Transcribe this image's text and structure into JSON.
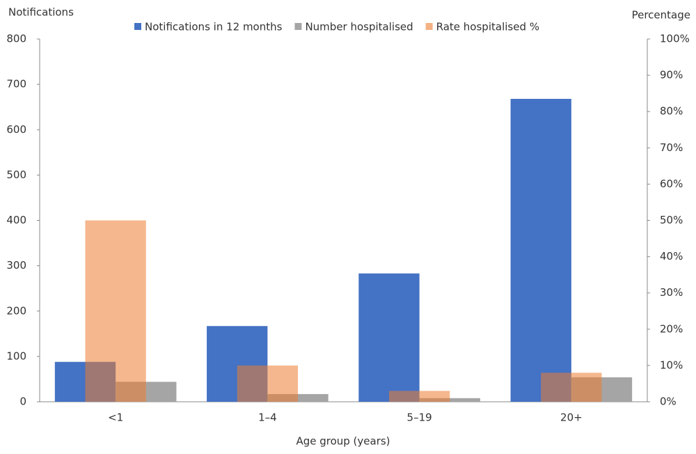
{
  "chart_data": {
    "type": "bar",
    "y_label": "Notifications",
    "y2_label": "Percentage",
    "x_label": "Age group (years)",
    "categories": [
      "<1",
      "1–4",
      "5–19",
      "20+"
    ],
    "series": [
      {
        "name": "Notifications in 12 months",
        "color": "#4472c4",
        "values": [
          88,
          167,
          283,
          668
        ]
      },
      {
        "name": "Number hospitalised",
        "color": "#a5a5a5",
        "values": [
          44,
          17,
          8,
          54
        ]
      },
      {
        "name": "Rate hospitalised %",
        "color": "#f4b183",
        "axis": "y2",
        "values": [
          50,
          10,
          3,
          8
        ]
      }
    ],
    "ylim": [
      0,
      800
    ],
    "yticks": [
      0,
      100,
      200,
      300,
      400,
      500,
      600,
      700,
      800
    ],
    "y2lim": [
      0,
      100
    ],
    "y2ticks": [
      {
        "value": 0,
        "label": "0%"
      },
      {
        "value": 10,
        "label": "10%"
      },
      {
        "value": 20,
        "label": "20%"
      },
      {
        "value": 30,
        "label": "30%"
      },
      {
        "value": 40,
        "label": "40%"
      },
      {
        "value": 50,
        "label": "50%"
      },
      {
        "value": 60,
        "label": "60%"
      },
      {
        "value": 70,
        "label": "70%"
      },
      {
        "value": 80,
        "label": "80%"
      },
      {
        "value": 90,
        "label": "90%"
      },
      {
        "value": 100,
        "label": "100%"
      }
    ],
    "legend": "top"
  }
}
